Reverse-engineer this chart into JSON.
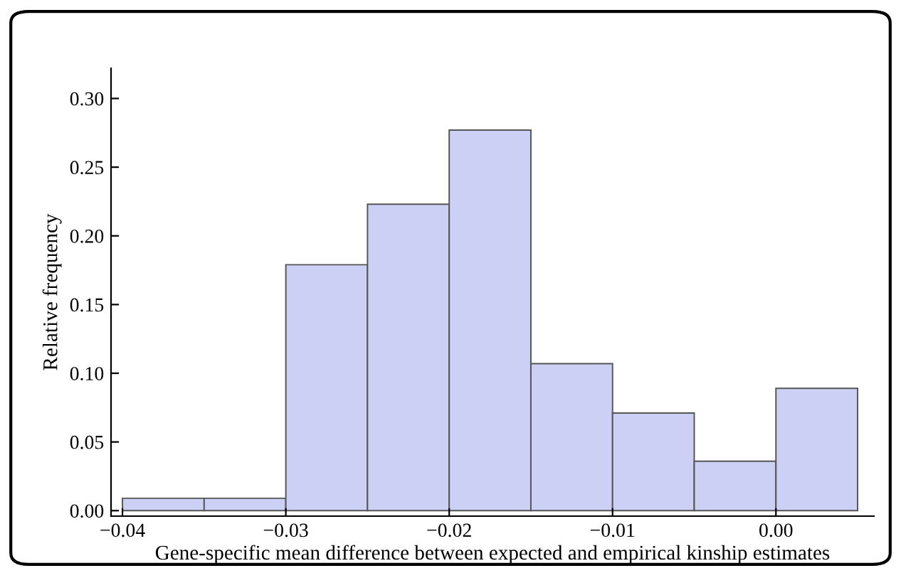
{
  "chart_data": {
    "type": "histogram",
    "xlabel": "Gene-specific mean difference between expected and empirical kinship estimates",
    "ylabel": "Relative frequency",
    "bins": [
      -0.04,
      -0.035,
      -0.03,
      -0.025,
      -0.02,
      -0.015,
      -0.01,
      -0.005,
      0.0,
      0.005
    ],
    "values": [
      0.009,
      0.009,
      0.179,
      0.223,
      0.277,
      0.107,
      0.071,
      0.036,
      0.089
    ],
    "color": "#ccd0f4",
    "xlim": [
      -0.0407,
      0.006
    ],
    "ylim": [
      -0.004,
      0.322
    ],
    "xticks": [
      {
        "value": -0.04,
        "label": "−0.04"
      },
      {
        "value": -0.03,
        "label": "−0.03"
      },
      {
        "value": -0.02,
        "label": "−0.02"
      },
      {
        "value": -0.01,
        "label": "−0.01"
      },
      {
        "value": 0.0,
        "label": "0.00"
      }
    ],
    "yticks": [
      {
        "value": 0.0,
        "label": "0.00"
      },
      {
        "value": 0.05,
        "label": "0.05"
      },
      {
        "value": 0.1,
        "label": "0.10"
      },
      {
        "value": 0.15,
        "label": "0.15"
      },
      {
        "value": 0.2,
        "label": "0.20"
      },
      {
        "value": 0.25,
        "label": "0.25"
      },
      {
        "value": 0.3,
        "label": "0.30"
      }
    ],
    "grid": false
  }
}
